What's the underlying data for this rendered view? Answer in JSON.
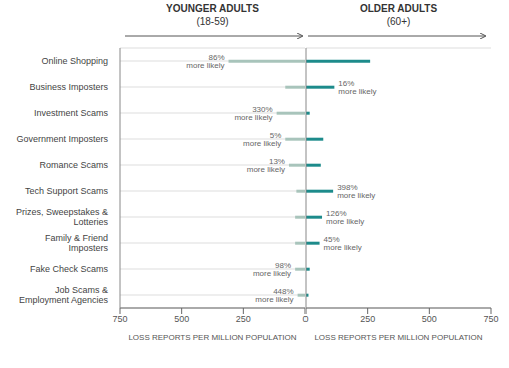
{
  "chart_data": [
    {
      "type": "bar",
      "orientation": "horizontal",
      "title": "YOUNGER ADULTS",
      "subtitle": "(18-59)",
      "xlabel": "LOSS REPORTS PER MILLION POPULATION",
      "categories": [
        "Online Shopping",
        "Business Imposters",
        "Investment Scams",
        "Government Imposters",
        "Romance Scams",
        "Tech Support Scams",
        "Prizes, Sweepstakes &\nLotteries",
        "Family & Friend\nImposters",
        "Fake Check Scams",
        "Job Scams &\nEmployment Agencies"
      ],
      "values": [
        310,
        80,
        115,
        80,
        65,
        35,
        40,
        40,
        40,
        30
      ],
      "color": "#a8c4bb",
      "xlim": [
        750,
        0
      ],
      "xticks": [
        750,
        500,
        250,
        0
      ],
      "grid": true,
      "annotations": [
        {
          "category": "Online Shopping",
          "text": "86%\nmore likely"
        },
        {
          "category": "Investment Scams",
          "text": "330%\nmore likely"
        },
        {
          "category": "Government Imposters",
          "text": "5%\nmore likely"
        },
        {
          "category": "Romance Scams",
          "text": "13%\nmore likely"
        },
        {
          "category": "Fake Check Scams",
          "text": "98%\nmore likely"
        },
        {
          "category": "Job Scams &\nEmployment Agencies",
          "text": "448%\nmore likely"
        }
      ]
    },
    {
      "type": "bar",
      "orientation": "horizontal",
      "title": "OLDER ADULTS",
      "subtitle": "(60+)",
      "xlabel": "LOSS REPORTS PER MILLION POPULATION",
      "categories": [
        "Online Shopping",
        "Business Imposters",
        "Investment Scams",
        "Government Imposters",
        "Romance Scams",
        "Tech Support Scams",
        "Prizes, Sweepstakes &\nLotteries",
        "Family & Friend\nImposters",
        "Fake Check Scams",
        "Job Scams &\nEmployment Agencies"
      ],
      "values": [
        260,
        115,
        15,
        70,
        60,
        110,
        65,
        55,
        15,
        10
      ],
      "color": "#1d8b8b",
      "xlim": [
        0,
        750
      ],
      "xticks": [
        0,
        250,
        500,
        750
      ],
      "grid": true,
      "tick_labels": "x",
      "annotations": [
        {
          "category": "Business Imposters",
          "text": "16%\nmore likely"
        },
        {
          "category": "Tech Support Scams",
          "text": "398%\nmore likely"
        },
        {
          "category": "Prizes, Sweepstakes &\nLotteries",
          "text": "126%\nmore likely"
        },
        {
          "category": "Family & Friend\nImposters",
          "text": "45%\nmore likely"
        }
      ]
    }
  ]
}
